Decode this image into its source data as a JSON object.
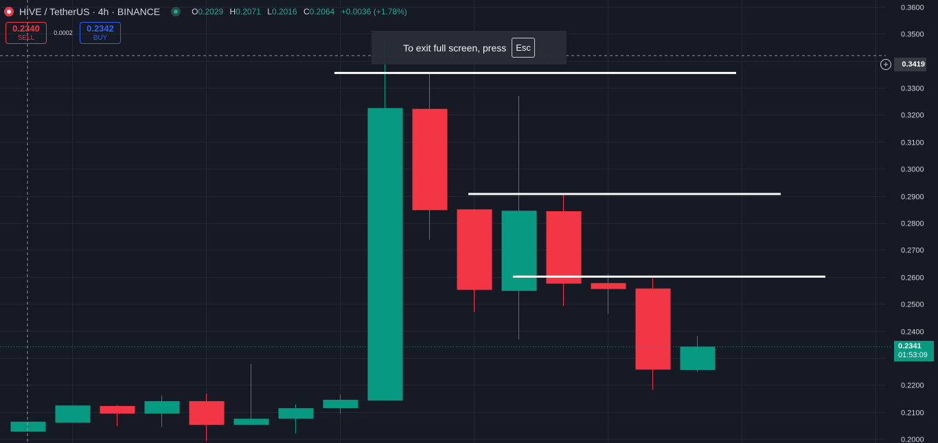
{
  "header": {
    "symbol_title": "HIVE / TetherUS · 4h · BINANCE",
    "ohlc": [
      {
        "key": "O",
        "value": "0.2029"
      },
      {
        "key": "H",
        "value": "0.2071"
      },
      {
        "key": "L",
        "value": "0.2016"
      },
      {
        "key": "C",
        "value": "0.2064"
      }
    ],
    "change": "+0.0036 (+1.78%)"
  },
  "trade": {
    "sell_price": "0.2340",
    "sell_label": "SELL",
    "spread": "0.0002",
    "buy_price": "0.2342",
    "buy_label": "BUY"
  },
  "toast": {
    "text": "To exit full screen, press",
    "key": "Esc"
  },
  "crosshair": {
    "price_label": "0.3419",
    "price": 0.3419
  },
  "current_price": {
    "price": "0.2341",
    "countdown": "01:53:09",
    "value": 0.2341
  },
  "colors": {
    "up": "#089981",
    "down": "#f23645",
    "background": "#161a25",
    "grid": "#232733",
    "axis_text": "#d1d4dc"
  },
  "chart_data": {
    "type": "candlestick",
    "y_ticks": [
      "0.3600",
      "0.3500",
      "0.3400",
      "0.3300",
      "0.3200",
      "0.3100",
      "0.3000",
      "0.2900",
      "0.2800",
      "0.2700",
      "0.2600",
      "0.2500",
      "0.2400",
      "0.2300",
      "0.2200",
      "0.2100",
      "0.2000"
    ],
    "ylim": [
      0.1985,
      0.3625
    ],
    "candles": [
      {
        "o": 0.2027,
        "h": 0.2064,
        "l": 0.2027,
        "c": 0.2064
      },
      {
        "o": 0.206,
        "h": 0.2124,
        "l": 0.206,
        "c": 0.2124
      },
      {
        "o": 0.2122,
        "h": 0.2127,
        "l": 0.2047,
        "c": 0.2094
      },
      {
        "o": 0.2094,
        "h": 0.2162,
        "l": 0.2044,
        "c": 0.214
      },
      {
        "o": 0.214,
        "h": 0.2168,
        "l": 0.1992,
        "c": 0.2052
      },
      {
        "o": 0.2052,
        "h": 0.2278,
        "l": 0.2052,
        "c": 0.2075
      },
      {
        "o": 0.2075,
        "h": 0.2128,
        "l": 0.2021,
        "c": 0.2114
      },
      {
        "o": 0.2114,
        "h": 0.2165,
        "l": 0.2093,
        "c": 0.2145
      },
      {
        "o": 0.2142,
        "h": 0.3475,
        "l": 0.2142,
        "c": 0.3225
      },
      {
        "o": 0.3222,
        "h": 0.3355,
        "l": 0.2738,
        "c": 0.2847
      },
      {
        "o": 0.285,
        "h": 0.285,
        "l": 0.247,
        "c": 0.2552
      },
      {
        "o": 0.2548,
        "h": 0.327,
        "l": 0.2368,
        "c": 0.2845
      },
      {
        "o": 0.2843,
        "h": 0.2903,
        "l": 0.2493,
        "c": 0.2575
      },
      {
        "o": 0.2577,
        "h": 0.261,
        "l": 0.2462,
        "c": 0.2555
      },
      {
        "o": 0.2557,
        "h": 0.2595,
        "l": 0.2182,
        "c": 0.2257
      },
      {
        "o": 0.2255,
        "h": 0.238,
        "l": 0.2248,
        "c": 0.2342
      }
    ],
    "horizontal_lines": [
      {
        "price": 0.3355,
        "from_candle": 7,
        "to_candle": 16
      },
      {
        "price": 0.2907,
        "from_candle": 10,
        "to_candle": 17
      },
      {
        "price": 0.2601,
        "from_candle": 11,
        "to_candle": 18
      }
    ]
  }
}
